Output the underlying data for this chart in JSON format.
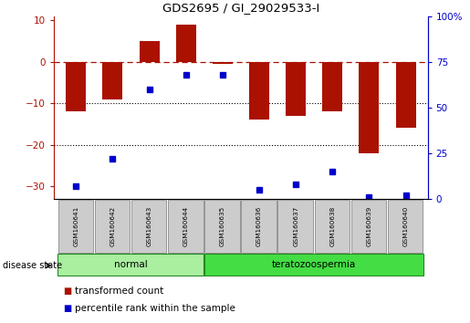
{
  "title": "GDS2695 / GI_29029533-I",
  "samples": [
    "GSM160641",
    "GSM160642",
    "GSM160643",
    "GSM160644",
    "GSM160635",
    "GSM160636",
    "GSM160637",
    "GSM160638",
    "GSM160639",
    "GSM160640"
  ],
  "bar_values": [
    -12,
    -9,
    5,
    9,
    -0.5,
    -14,
    -13,
    -12,
    -22,
    -16
  ],
  "dot_values": [
    7,
    22,
    60,
    68,
    68,
    5,
    8,
    15,
    1,
    2
  ],
  "groups": [
    {
      "label": "normal",
      "start": 0,
      "end": 4,
      "color": "#AAEEA0"
    },
    {
      "label": "teratozoospermia",
      "start": 4,
      "end": 10,
      "color": "#44DD44"
    }
  ],
  "bar_color": "#AA1100",
  "dot_color": "#0000CC",
  "dashed_line_color": "#AA1100",
  "ylim_left": [
    -33,
    11
  ],
  "ylim_right": [
    0,
    100
  ],
  "yticks_left": [
    -30,
    -20,
    -10,
    0,
    10
  ],
  "yticks_right": [
    0,
    25,
    50,
    75,
    100
  ],
  "dotted_lines": [
    -10,
    -20
  ],
  "legend_items": [
    {
      "label": "transformed count",
      "color": "#AA1100",
      "marker": "s"
    },
    {
      "label": "percentile rank within the sample",
      "color": "#0000CC",
      "marker": "s"
    }
  ],
  "disease_state_label": "disease state",
  "background_color": "#ffffff",
  "sample_box_color": "#CCCCCC",
  "sample_box_edge": "#888888"
}
